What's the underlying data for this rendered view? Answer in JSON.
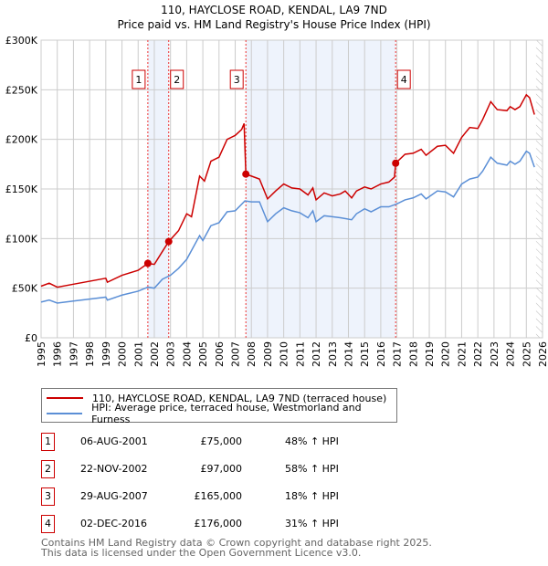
{
  "title": "110, HAYCLOSE ROAD, KENDAL, LA9 7ND",
  "subtitle": "Price paid vs. HM Land Registry's House Price Index (HPI)",
  "chart_data": {
    "type": "line",
    "xlim": [
      1995,
      2026
    ],
    "ylim": [
      0,
      300000
    ],
    "yticks": [
      {
        "v": 0,
        "label": "£0"
      },
      {
        "v": 50000,
        "label": "£50K"
      },
      {
        "v": 100000,
        "label": "£100K"
      },
      {
        "v": 150000,
        "label": "£150K"
      },
      {
        "v": 200000,
        "label": "£200K"
      },
      {
        "v": 250000,
        "label": "£250K"
      },
      {
        "v": 300000,
        "label": "£300K"
      }
    ],
    "xticks": [
      "1995",
      "1996",
      "1997",
      "1998",
      "1999",
      "2000",
      "2001",
      "2002",
      "2003",
      "2004",
      "2005",
      "2006",
      "2007",
      "2008",
      "2009",
      "2010",
      "2011",
      "2012",
      "2013",
      "2014",
      "2015",
      "2016",
      "2017",
      "2018",
      "2019",
      "2020",
      "2021",
      "2022",
      "2023",
      "2024",
      "2025",
      "2026"
    ],
    "grid": true,
    "shaded_ranges": [
      [
        2001.6,
        2002.89
      ],
      [
        2007.66,
        2016.92
      ]
    ],
    "hatched_from": 2025.6,
    "series": [
      {
        "name": "110, HAYCLOSE ROAD, KENDAL, LA9 7ND (terraced house)",
        "color": "#cc0000",
        "x": [
          1995,
          1995.5,
          1996,
          1997,
          1998,
          1999,
          1999.1,
          2000,
          2001,
          2001.6,
          2002,
          2002.5,
          2002.89,
          2003.5,
          2004,
          2004.3,
          2004.8,
          2005.1,
          2005.5,
          2006,
          2006.5,
          2007,
          2007.4,
          2007.55,
          2007.66,
          2008,
          2008.5,
          2009,
          2009.5,
          2010,
          2010.5,
          2011,
          2011.5,
          2011.8,
          2012,
          2012.5,
          2013,
          2013.5,
          2013.8,
          2014.2,
          2014.5,
          2015,
          2015.4,
          2016,
          2016.5,
          2016.85,
          2016.92,
          2017.5,
          2018,
          2018.5,
          2018.8,
          2019.5,
          2020,
          2020.5,
          2021,
          2021.5,
          2022,
          2022.3,
          2022.8,
          2023.2,
          2023.8,
          2024,
          2024.3,
          2024.6,
          2025,
          2025.2,
          2025.5
        ],
        "y": [
          52000,
          55000,
          51000,
          54000,
          57000,
          60000,
          56000,
          63000,
          68000,
          75000,
          74000,
          87000,
          97000,
          108000,
          125000,
          122000,
          163000,
          158000,
          178000,
          182000,
          200000,
          204000,
          210000,
          216000,
          165000,
          163000,
          160000,
          140000,
          148000,
          155000,
          151000,
          150000,
          144000,
          151000,
          139000,
          146000,
          143000,
          145000,
          148000,
          141000,
          148000,
          152000,
          150000,
          155000,
          157000,
          162000,
          176000,
          185000,
          186000,
          190000,
          184000,
          193000,
          194000,
          186000,
          202000,
          212000,
          211000,
          220000,
          238000,
          230000,
          229000,
          233000,
          230000,
          233000,
          245000,
          242000,
          225000
        ]
      },
      {
        "name": "HPI: Average price, terraced house, Westmorland and Furness",
        "color": "#5b8fd6",
        "x": [
          1995,
          1995.5,
          1996,
          1997,
          1998,
          1999,
          1999.1,
          2000,
          2001,
          2001.6,
          2002,
          2002.5,
          2003,
          2003.5,
          2004,
          2004.8,
          2005,
          2005.5,
          2006,
          2006.5,
          2007,
          2007.6,
          2008,
          2008.5,
          2009,
          2009.5,
          2010,
          2010.5,
          2011,
          2011.5,
          2011.8,
          2012,
          2012.5,
          2013,
          2013.5,
          2014.2,
          2014.5,
          2015,
          2015.4,
          2016,
          2016.5,
          2017,
          2017.5,
          2018,
          2018.5,
          2018.8,
          2019.5,
          2020,
          2020.5,
          2021,
          2021.5,
          2022,
          2022.3,
          2022.8,
          2023.2,
          2023.8,
          2024,
          2024.3,
          2024.6,
          2025,
          2025.2,
          2025.5
        ],
        "y": [
          36000,
          38000,
          35000,
          37000,
          39000,
          41000,
          38000,
          43000,
          47000,
          51000,
          50000,
          59000,
          63000,
          70000,
          79000,
          103000,
          98000,
          113000,
          116000,
          127000,
          128000,
          138000,
          137000,
          137000,
          117000,
          125000,
          131000,
          128000,
          126000,
          121000,
          128000,
          117000,
          123000,
          122000,
          121000,
          119000,
          125000,
          130000,
          127000,
          132000,
          132000,
          135000,
          139000,
          141000,
          145000,
          140000,
          148000,
          147000,
          142000,
          155000,
          160000,
          162000,
          168000,
          182000,
          176000,
          174000,
          178000,
          175000,
          178000,
          188000,
          186000,
          172000
        ]
      }
    ],
    "sales": [
      {
        "n": "1",
        "date": "06-AUG-2001",
        "x": 2001.6,
        "price": "£75,000",
        "value": 75000,
        "hpi": "48% ↑ HPI"
      },
      {
        "n": "2",
        "date": "22-NOV-2002",
        "x": 2002.89,
        "price": "£97,000",
        "value": 97000,
        "hpi": "58% ↑ HPI"
      },
      {
        "n": "3",
        "date": "29-AUG-2007",
        "x": 2007.66,
        "price": "£165,000",
        "value": 165000,
        "hpi": "18% ↑ HPI"
      },
      {
        "n": "4",
        "date": "02-DEC-2016",
        "x": 2016.92,
        "price": "£176,000",
        "value": 176000,
        "hpi": "31% ↑ HPI"
      }
    ]
  },
  "footer": [
    "Contains HM Land Registry data © Crown copyright and database right 2025.",
    "This data is licensed under the Open Government Licence v3.0."
  ]
}
